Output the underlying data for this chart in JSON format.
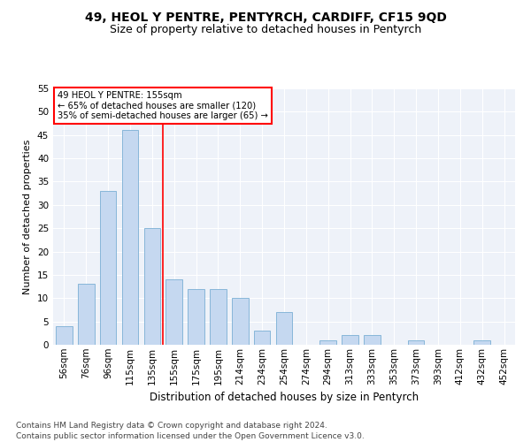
{
  "title": "49, HEOL Y PENTRE, PENTYRCH, CARDIFF, CF15 9QD",
  "subtitle": "Size of property relative to detached houses in Pentyrch",
  "xlabel": "Distribution of detached houses by size in Pentyrch",
  "ylabel": "Number of detached properties",
  "categories": [
    "56sqm",
    "76sqm",
    "96sqm",
    "115sqm",
    "135sqm",
    "155sqm",
    "175sqm",
    "195sqm",
    "214sqm",
    "234sqm",
    "254sqm",
    "274sqm",
    "294sqm",
    "313sqm",
    "333sqm",
    "353sqm",
    "373sqm",
    "393sqm",
    "412sqm",
    "432sqm",
    "452sqm"
  ],
  "values": [
    4,
    13,
    33,
    46,
    25,
    14,
    12,
    12,
    10,
    3,
    7,
    0,
    1,
    2,
    2,
    0,
    1,
    0,
    0,
    1,
    0
  ],
  "bar_color": "#c5d8f0",
  "bar_edge_color": "#7aafd4",
  "vline_color": "red",
  "annotation_text": "49 HEOL Y PENTRE: 155sqm\n← 65% of detached houses are smaller (120)\n35% of semi-detached houses are larger (65) →",
  "annotation_box_color": "white",
  "annotation_box_edge_color": "red",
  "ylim": [
    0,
    55
  ],
  "yticks": [
    0,
    5,
    10,
    15,
    20,
    25,
    30,
    35,
    40,
    45,
    50,
    55
  ],
  "footer": "Contains HM Land Registry data © Crown copyright and database right 2024.\nContains public sector information licensed under the Open Government Licence v3.0.",
  "plot_bg_color": "#eef2f9",
  "title_fontsize": 10,
  "subtitle_fontsize": 9,
  "xlabel_fontsize": 8.5,
  "ylabel_fontsize": 8,
  "tick_fontsize": 7.5,
  "footer_fontsize": 6.5,
  "vline_index": 4.5
}
